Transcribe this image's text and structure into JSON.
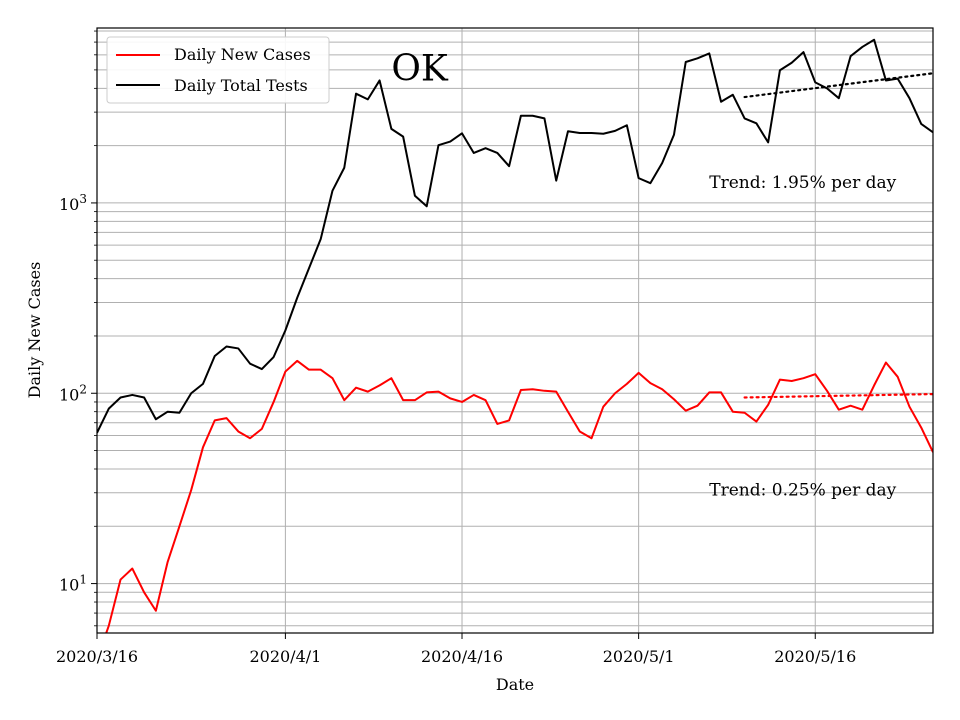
{
  "chart_data": {
    "type": "line",
    "xlabel": "Date",
    "ylabel": "Daily New Cases",
    "yscale": "log",
    "ylim": [
      5.5,
      8300
    ],
    "xlim": [
      "2020-03-16",
      "2020-05-26"
    ],
    "x_ticks": [
      {
        "date": "2020-03-16",
        "label": "2020/3/16"
      },
      {
        "date": "2020-04-01",
        "label": "2020/4/1"
      },
      {
        "date": "2020-04-16",
        "label": "2020/4/16"
      },
      {
        "date": "2020-05-01",
        "label": "2020/5/1"
      },
      {
        "date": "2020-05-16",
        "label": "2020/5/16"
      }
    ],
    "y_ticks": [
      {
        "value": 10,
        "base": "10",
        "exp": "1"
      },
      {
        "value": 100,
        "base": "10",
        "exp": "2"
      },
      {
        "value": 1000,
        "base": "10",
        "exp": "3"
      }
    ],
    "grid": true,
    "legend": {
      "placement": "top-left",
      "entries": [
        "Daily New Cases",
        "Daily Total Tests"
      ]
    },
    "x": [
      "2020-03-16",
      "2020-03-17",
      "2020-03-18",
      "2020-03-19",
      "2020-03-20",
      "2020-03-21",
      "2020-03-22",
      "2020-03-23",
      "2020-03-24",
      "2020-03-25",
      "2020-03-26",
      "2020-03-27",
      "2020-03-28",
      "2020-03-29",
      "2020-03-30",
      "2020-03-31",
      "2020-04-01",
      "2020-04-02",
      "2020-04-03",
      "2020-04-04",
      "2020-04-05",
      "2020-04-06",
      "2020-04-07",
      "2020-04-08",
      "2020-04-09",
      "2020-04-10",
      "2020-04-11",
      "2020-04-12",
      "2020-04-13",
      "2020-04-14",
      "2020-04-15",
      "2020-04-16",
      "2020-04-17",
      "2020-04-18",
      "2020-04-19",
      "2020-04-20",
      "2020-04-21",
      "2020-04-22",
      "2020-04-23",
      "2020-04-24",
      "2020-04-25",
      "2020-04-26",
      "2020-04-27",
      "2020-04-28",
      "2020-04-29",
      "2020-04-30",
      "2020-05-01",
      "2020-05-02",
      "2020-05-03",
      "2020-05-04",
      "2020-05-05",
      "2020-05-06",
      "2020-05-07",
      "2020-05-08",
      "2020-05-09",
      "2020-05-10",
      "2020-05-11",
      "2020-05-12",
      "2020-05-13",
      "2020-05-14",
      "2020-05-15",
      "2020-05-16",
      "2020-05-17",
      "2020-05-18",
      "2020-05-19",
      "2020-05-20",
      "2020-05-21",
      "2020-05-22",
      "2020-05-23",
      "2020-05-24",
      "2020-05-25",
      "2020-05-26"
    ],
    "series": [
      {
        "name": "Daily New Cases",
        "color": "#ff0000",
        "values": [
          4,
          6,
          10.5,
          12,
          9,
          7.2,
          13,
          20,
          31,
          52,
          72,
          74,
          63,
          58,
          65,
          90,
          130,
          148,
          133,
          133,
          120,
          92,
          107,
          102,
          110,
          120,
          92,
          92,
          101,
          102,
          94,
          90,
          98,
          92,
          69,
          72,
          104,
          105,
          103,
          102,
          80,
          63,
          58,
          85,
          100,
          112,
          128,
          113,
          105,
          93,
          81,
          86,
          101,
          101,
          80,
          79,
          71,
          87,
          118,
          116,
          120,
          126,
          103,
          82,
          86,
          82,
          110,
          145,
          122,
          85,
          66,
          49
        ]
      },
      {
        "name": "Daily Total Tests",
        "color": "#000000",
        "values": [
          62,
          83,
          95,
          98,
          95,
          73,
          80,
          79,
          100,
          112,
          157,
          176,
          172,
          143,
          134,
          155,
          214,
          317,
          453,
          646,
          1160,
          1530,
          3750,
          3500,
          4400,
          2450,
          2230,
          1090,
          960,
          2010,
          2100,
          2320,
          1830,
          1940,
          1830,
          1560,
          2870,
          2870,
          2780,
          1310,
          2380,
          2330,
          2330,
          2310,
          2390,
          2560,
          1350,
          1270,
          1620,
          2280,
          5500,
          5750,
          6100,
          3400,
          3700,
          2780,
          2620,
          2080,
          4980,
          5450,
          6200,
          4300,
          4000,
          3550,
          5900,
          6600,
          7200,
          4400,
          4500,
          3550,
          2600,
          2350
        ]
      }
    ],
    "trend_lines": [
      {
        "color": "#000000",
        "x": [
          "2020-05-10",
          "2020-05-26"
        ],
        "y": [
          3600,
          4800
        ],
        "style": "dotted"
      },
      {
        "color": "#ff0000",
        "x": [
          "2020-05-10",
          "2020-05-26"
        ],
        "y": [
          95,
          99
        ],
        "style": "dotted"
      }
    ],
    "annotations": [
      {
        "text": "OK",
        "x": "2020-04-10",
        "y": 4400,
        "size": "large"
      },
      {
        "text": "Trend: 1.95% per day",
        "x": "2020-05-07",
        "y": 1200,
        "size": "normal"
      },
      {
        "text": "Trend: 0.25% per day",
        "x": "2020-05-07",
        "y": 29,
        "size": "normal"
      }
    ]
  }
}
